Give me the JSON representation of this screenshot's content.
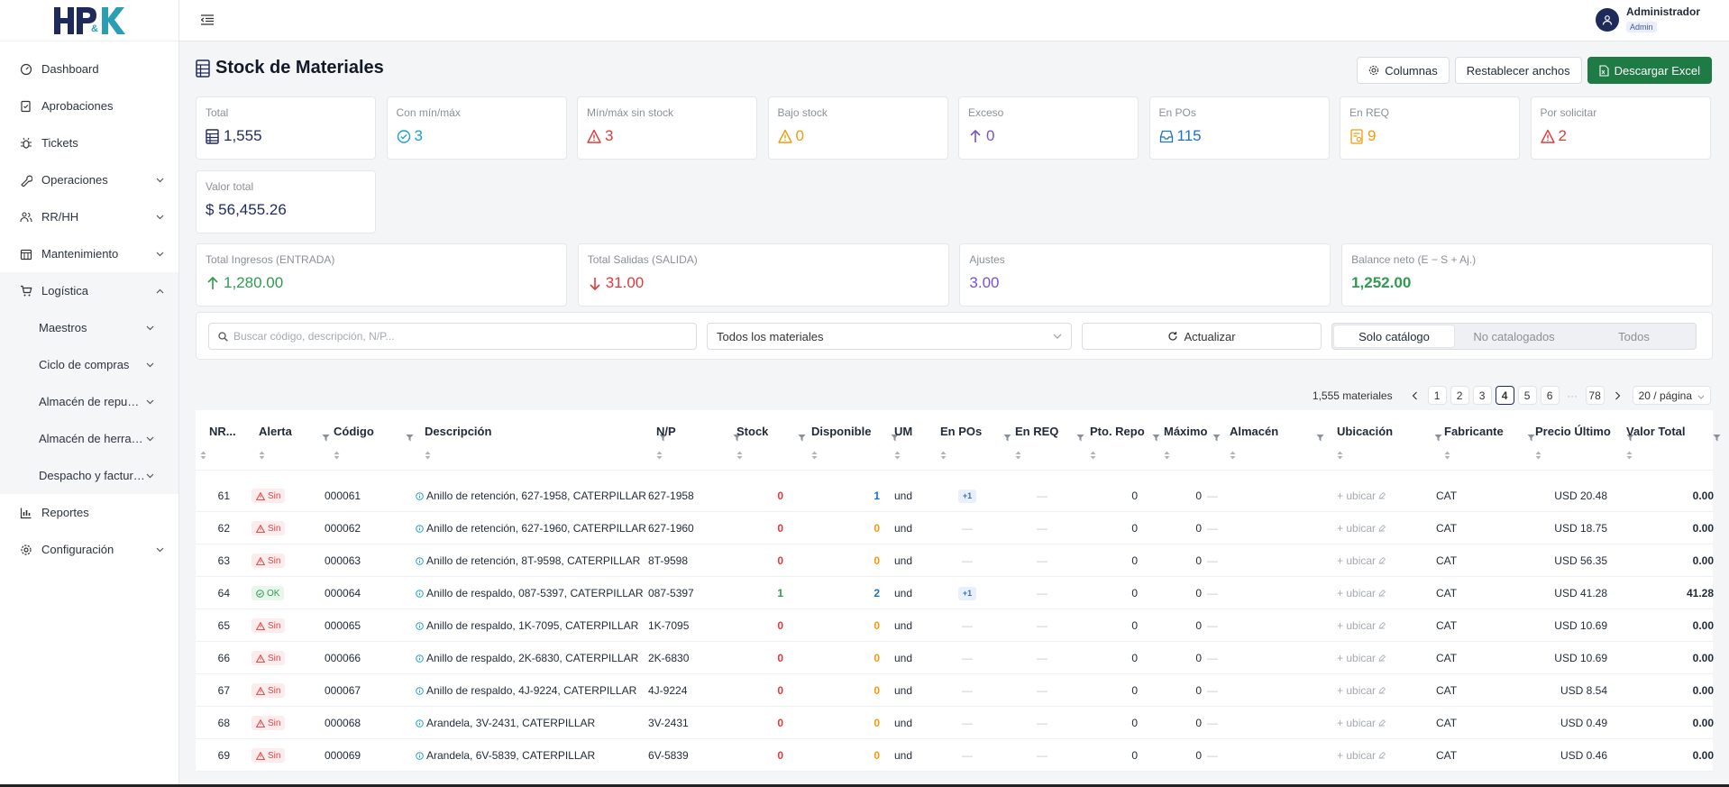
{
  "app": {
    "logo_text": "HP&K"
  },
  "sidebar": {
    "items": [
      {
        "label": "Dashboard",
        "icon": "gauge-icon"
      },
      {
        "label": "Aprobaciones",
        "icon": "approval-icon"
      },
      {
        "label": "Tickets",
        "icon": "bug-icon"
      },
      {
        "label": "Operaciones",
        "icon": "wrench-icon"
      },
      {
        "label": "RR/HH",
        "icon": "people-icon"
      },
      {
        "label": "Mantenimiento",
        "icon": "calendar-icon"
      },
      {
        "label": "Logística",
        "icon": "cart-icon"
      }
    ],
    "subitems": [
      {
        "label": "Maestros"
      },
      {
        "label": "Ciclo de compras"
      },
      {
        "label": "Almacén de repuestos"
      },
      {
        "label": "Almacén de herramientas"
      },
      {
        "label": "Despacho y facturación"
      }
    ],
    "bottom": [
      {
        "label": "Reportes",
        "icon": "bar-chart-icon"
      },
      {
        "label": "Configuración",
        "icon": "gear-icon"
      }
    ]
  },
  "user": {
    "name": "Administrador",
    "role": "Admin"
  },
  "page": {
    "title": "Stock de Materiales"
  },
  "actions": {
    "columns": "Columnas",
    "reset": "Restablecer anchos",
    "excel": "Descargar Excel"
  },
  "stats": [
    {
      "title": "Total",
      "value": "1,555",
      "color": "#1e2a5a",
      "icon": "table-icon"
    },
    {
      "title": "Con mín/máx",
      "value": "3",
      "color": "#1a9fd6",
      "icon": "check-circle-icon"
    },
    {
      "title": "Mín/máx sin stock",
      "value": "3",
      "color": "#e03b3b",
      "icon": "warning-icon"
    },
    {
      "title": "Bajo stock",
      "value": "0",
      "color": "#f29a0e",
      "icon": "warning-icon"
    },
    {
      "title": "Exceso",
      "value": "0",
      "color": "#7b4fd6",
      "icon": "arrow-up-icon"
    },
    {
      "title": "En POs",
      "value": "115",
      "color": "#1a73c9",
      "icon": "inbox-icon"
    },
    {
      "title": "En REQ",
      "value": "9",
      "color": "#f29a0e",
      "icon": "request-icon"
    },
    {
      "title": "Por solicitar",
      "value": "2",
      "color": "#e03b3b",
      "icon": "warning-icon"
    },
    {
      "title": "Valor total",
      "value": "$ 56,455.26",
      "color": "#1e2a5a",
      "icon": ""
    }
  ],
  "movements": [
    {
      "title": "Total Ingresos (ENTRADA)",
      "value": "1,280.00",
      "color": "#2f9a50",
      "icon": "arrow-up-icon"
    },
    {
      "title": "Total Salidas (SALIDA)",
      "value": "31.00",
      "color": "#e03b3b",
      "icon": "arrow-down-icon"
    },
    {
      "title": "Ajustes",
      "value": "3.00",
      "color": "#7b4fd6",
      "icon": ""
    },
    {
      "title": "Balance neto (E − S + Aj.)",
      "value": "1,252.00",
      "color": "#2f9a50",
      "icon": ""
    }
  ],
  "filters": {
    "search_placeholder": "Buscar código, descripción, N/P...",
    "select_value": "Todos los materiales",
    "refresh": "Actualizar",
    "segments": [
      "Solo catálogo",
      "No catalogados",
      "Todos"
    ],
    "active_segment": "Solo catálogo"
  },
  "pagination": {
    "count": "1,555 materiales",
    "pages": [
      "1",
      "2",
      "3",
      "4",
      "5",
      "6"
    ],
    "current": "4",
    "last": "78",
    "ellipsis": "···",
    "page_size": "20 / página"
  },
  "table": {
    "columns": [
      "NR...",
      "Alerta",
      "Código",
      "Descripción",
      "N/P",
      "Stock",
      "Disponible",
      "UM",
      "En POs",
      "En REQ",
      "Pto. Repo",
      "Máximo",
      "Almacén",
      "Ubicación",
      "Fabricante",
      "Precio Último",
      "Valor Total"
    ],
    "empty": "—",
    "ubicar": "+ ubicar",
    "rows": [
      {
        "nr": "61",
        "alerta": "Sin",
        "codigo": "000061",
        "desc": "Anillo de retención, 627-1958, CATERPILLAR",
        "np": "627-1958",
        "stock": "0",
        "disp": "1",
        "um": "und",
        "pos": "+1",
        "req": "—",
        "repo": "0",
        "max": "0",
        "alm": "—",
        "fab": "CAT",
        "precio": "USD 20.48",
        "valor": "0.00"
      },
      {
        "nr": "62",
        "alerta": "Sin",
        "codigo": "000062",
        "desc": "Anillo de retención, 627-1960, CATERPILLAR",
        "np": "627-1960",
        "stock": "0",
        "disp": "0",
        "um": "und",
        "pos": "—",
        "req": "—",
        "repo": "0",
        "max": "0",
        "alm": "—",
        "fab": "CAT",
        "precio": "USD 18.75",
        "valor": "0.00"
      },
      {
        "nr": "63",
        "alerta": "Sin",
        "codigo": "000063",
        "desc": "Anillo de retención, 8T-9598, CATERPILLAR",
        "np": "8T-9598",
        "stock": "0",
        "disp": "0",
        "um": "und",
        "pos": "—",
        "req": "—",
        "repo": "0",
        "max": "0",
        "alm": "—",
        "fab": "CAT",
        "precio": "USD 56.35",
        "valor": "0.00"
      },
      {
        "nr": "64",
        "alerta": "OK",
        "codigo": "000064",
        "desc": "Anillo de respaldo, 087-5397, CATERPILLAR",
        "np": "087-5397",
        "stock": "1",
        "disp": "2",
        "um": "und",
        "pos": "+1",
        "req": "—",
        "repo": "0",
        "max": "0",
        "alm": "—",
        "fab": "CAT",
        "precio": "USD 41.28",
        "valor": "41.28"
      },
      {
        "nr": "65",
        "alerta": "Sin",
        "codigo": "000065",
        "desc": "Anillo de respaldo, 1K-7095, CATERPILLAR",
        "np": "1K-7095",
        "stock": "0",
        "disp": "0",
        "um": "und",
        "pos": "—",
        "req": "—",
        "repo": "0",
        "max": "0",
        "alm": "—",
        "fab": "CAT",
        "precio": "USD 10.69",
        "valor": "0.00"
      },
      {
        "nr": "66",
        "alerta": "Sin",
        "codigo": "000066",
        "desc": "Anillo de respaldo, 2K-6830, CATERPILLAR",
        "np": "2K-6830",
        "stock": "0",
        "disp": "0",
        "um": "und",
        "pos": "—",
        "req": "—",
        "repo": "0",
        "max": "0",
        "alm": "—",
        "fab": "CAT",
        "precio": "USD 10.69",
        "valor": "0.00"
      },
      {
        "nr": "67",
        "alerta": "Sin",
        "codigo": "000067",
        "desc": "Anillo de respaldo, 4J-9224, CATERPILLAR",
        "np": "4J-9224",
        "stock": "0",
        "disp": "0",
        "um": "und",
        "pos": "—",
        "req": "—",
        "repo": "0",
        "max": "0",
        "alm": "—",
        "fab": "CAT",
        "precio": "USD 8.54",
        "valor": "0.00"
      },
      {
        "nr": "68",
        "alerta": "Sin",
        "codigo": "000068",
        "desc": "Arandela, 3V-2431, CATERPILLAR",
        "np": "3V-2431",
        "stock": "0",
        "disp": "0",
        "um": "und",
        "pos": "—",
        "req": "—",
        "repo": "0",
        "max": "0",
        "alm": "—",
        "fab": "CAT",
        "precio": "USD 0.49",
        "valor": "0.00"
      },
      {
        "nr": "69",
        "alerta": "Sin",
        "codigo": "000069",
        "desc": "Arandela, 6V-5839, CATERPILLAR",
        "np": "6V-5839",
        "stock": "0",
        "disp": "0",
        "um": "und",
        "pos": "—",
        "req": "—",
        "repo": "0",
        "max": "0",
        "alm": "—",
        "fab": "CAT",
        "precio": "USD 0.46",
        "valor": "0.00"
      }
    ]
  }
}
